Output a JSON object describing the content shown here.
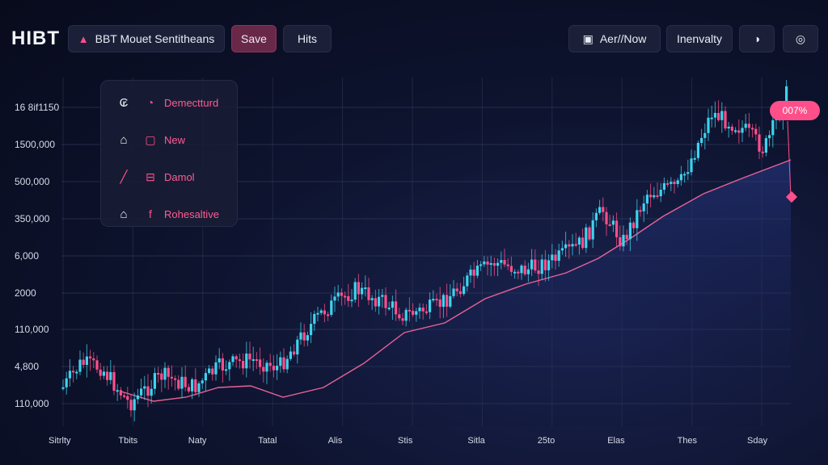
{
  "header": {
    "brand": "HIBT",
    "market_tab": {
      "icon": "pink-chart-icon",
      "label": "BBT Mouet Sentitheans"
    },
    "save_label": "Save",
    "hits_label": "Hits",
    "mode_button": {
      "icon": "picture-icon",
      "label": "Aer//Now"
    },
    "inventory_label": "Inenvalty",
    "theme_icon": "half-moon-icon",
    "settings_icon": "circle-settings-icon"
  },
  "menu": {
    "items": [
      {
        "left_icon": "currency-icon",
        "glyph_icon": "gauge-icon",
        "label": "Demectturd"
      },
      {
        "left_icon": "bank-icon",
        "glyph_icon": "square-icon",
        "label": "New"
      },
      {
        "left_icon": "diagonal-line-icon",
        "glyph_icon": "boxed-e-icon",
        "label": "Damol"
      },
      {
        "left_icon": "bank-icon",
        "glyph_icon": "f-icon",
        "label": "Rohesaltive"
      }
    ]
  },
  "badge": {
    "label": "007%"
  },
  "colors": {
    "up": "#3fd3ee",
    "down": "#ff4f8b",
    "ma": "#ff6aa0",
    "accent": "#ff4f8b"
  },
  "chart_data": {
    "type": "candlestick",
    "y_tick_labels": [
      "16 8if1150",
      "1500,000",
      "500,000",
      "350,000",
      "6,000",
      "2000",
      "110,000",
      "4,800",
      "110,000"
    ],
    "x_tick_labels": [
      "Sitrlty",
      "Tbits",
      "Naty",
      "Tatal",
      "Alis",
      "Stis",
      "Sitla",
      "25to",
      "Elas",
      "Thes",
      "Sday"
    ],
    "grid": true
  }
}
